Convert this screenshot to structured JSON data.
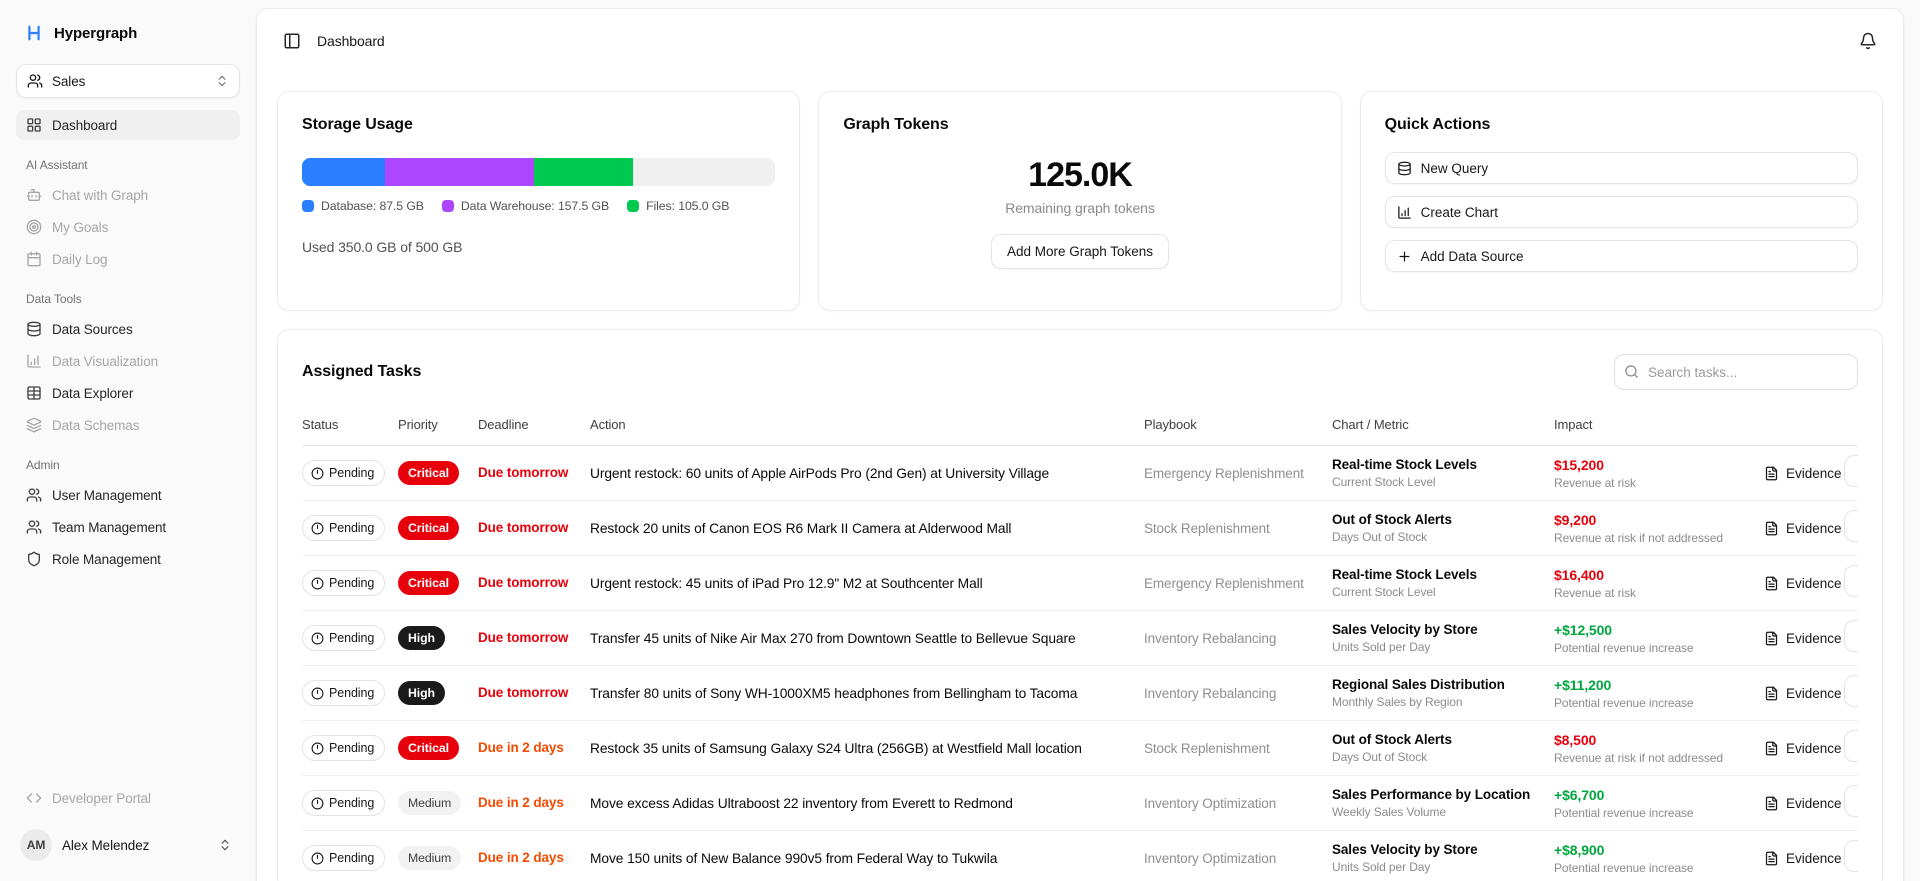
{
  "app": {
    "name": "Hypergraph"
  },
  "topbar": {
    "title": "Dashboard"
  },
  "sidebar": {
    "workspace_label": "Sales",
    "primary": {
      "dashboard_label": "Dashboard"
    },
    "sections": [
      {
        "label": "AI Assistant",
        "items": [
          {
            "label": "Chat with Graph",
            "icon": "bot-icon",
            "muted": true
          },
          {
            "label": "My Goals",
            "icon": "target-icon",
            "muted": true
          },
          {
            "label": "Daily Log",
            "icon": "calendar-icon",
            "muted": true
          }
        ]
      },
      {
        "label": "Data Tools",
        "items": [
          {
            "label": "Data Sources",
            "icon": "database-icon",
            "muted": false
          },
          {
            "label": "Data Visualization",
            "icon": "bar-chart-icon",
            "muted": true
          },
          {
            "label": "Data Explorer",
            "icon": "table-icon",
            "muted": false
          },
          {
            "label": "Data Schemas",
            "icon": "layers-icon",
            "muted": true
          }
        ]
      },
      {
        "label": "Admin",
        "items": [
          {
            "label": "User Management",
            "icon": "users-icon",
            "muted": false
          },
          {
            "label": "Team Management",
            "icon": "users-icon",
            "muted": false
          },
          {
            "label": "Role Management",
            "icon": "shield-icon",
            "muted": false
          }
        ]
      }
    ],
    "footer": {
      "developer_portal_label": "Developer Portal",
      "user": {
        "initials": "AM",
        "name": "Alex Melendez"
      }
    }
  },
  "cards": {
    "storage": {
      "title": "Storage Usage",
      "used_label": "Used 350.0 GB of 500 GB",
      "used_gb": 350.0,
      "capacity_gb": 500,
      "segments": [
        {
          "name": "Database",
          "label": "Database: 87.5 GB",
          "gb": 87.5,
          "pct": 17.5,
          "color": "#2b7fff"
        },
        {
          "name": "Data Warehouse",
          "label": "Data Warehouse: 157.5 GB",
          "gb": 157.5,
          "pct": 31.5,
          "color": "#ad46ff"
        },
        {
          "name": "Files",
          "label": "Files: 105.0 GB",
          "gb": 105.0,
          "pct": 21,
          "color": "#00c950"
        }
      ]
    },
    "tokens": {
      "title": "Graph Tokens",
      "value": "125.0K",
      "subtitle": "Remaining graph tokens",
      "button_label": "Add More Graph Tokens"
    },
    "quick_actions": {
      "title": "Quick Actions",
      "actions": [
        {
          "label": "New Query",
          "icon": "database-icon"
        },
        {
          "label": "Create Chart",
          "icon": "bar-chart-icon"
        },
        {
          "label": "Add Data Source",
          "icon": "plus-icon"
        }
      ]
    }
  },
  "tasks": {
    "title": "Assigned Tasks",
    "search_placeholder": "Search tasks...",
    "columns": [
      "Status",
      "Priority",
      "Deadline",
      "Action",
      "Playbook",
      "Chart / Metric",
      "Impact"
    ],
    "evidence_label": "Evidence",
    "rows": [
      {
        "status": "Pending",
        "priority": "Critical",
        "priority_variant": "critical",
        "deadline": "Due tomorrow",
        "deadline_variant": "urgent",
        "action": "Urgent restock: 60 units of Apple AirPods Pro (2nd Gen) at University Village",
        "playbook": "Emergency Replenishment",
        "metric": "Real-time Stock Levels",
        "metric_sub": "Current Stock Level",
        "impact": "$15,200",
        "impact_variant": "risk",
        "impact_sub": "Revenue at risk"
      },
      {
        "status": "Pending",
        "priority": "Critical",
        "priority_variant": "critical",
        "deadline": "Due tomorrow",
        "deadline_variant": "urgent",
        "action": "Restock 20 units of Canon EOS R6 Mark II Camera at Alderwood Mall",
        "playbook": "Stock Replenishment",
        "metric": "Out of Stock Alerts",
        "metric_sub": "Days Out of Stock",
        "impact": "$9,200",
        "impact_variant": "risk",
        "impact_sub": "Revenue at risk if not addressed"
      },
      {
        "status": "Pending",
        "priority": "Critical",
        "priority_variant": "critical",
        "deadline": "Due tomorrow",
        "deadline_variant": "urgent",
        "action": "Urgent restock: 45 units of iPad Pro 12.9\" M2 at Southcenter Mall",
        "playbook": "Emergency Replenishment",
        "metric": "Real-time Stock Levels",
        "metric_sub": "Current Stock Level",
        "impact": "$16,400",
        "impact_variant": "risk",
        "impact_sub": "Revenue at risk"
      },
      {
        "status": "Pending",
        "priority": "High",
        "priority_variant": "high",
        "deadline": "Due tomorrow",
        "deadline_variant": "urgent",
        "action": "Transfer 45 units of Nike Air Max 270 from Downtown Seattle to Bellevue Square",
        "playbook": "Inventory Rebalancing",
        "metric": "Sales Velocity by Store",
        "metric_sub": "Units Sold per Day",
        "impact": "+$12,500",
        "impact_variant": "gain",
        "impact_sub": "Potential revenue increase"
      },
      {
        "status": "Pending",
        "priority": "High",
        "priority_variant": "high",
        "deadline": "Due tomorrow",
        "deadline_variant": "urgent",
        "action": "Transfer 80 units of Sony WH-1000XM5 headphones from Bellingham to Tacoma",
        "playbook": "Inventory Rebalancing",
        "metric": "Regional Sales Distribution",
        "metric_sub": "Monthly Sales by Region",
        "impact": "+$11,200",
        "impact_variant": "gain",
        "impact_sub": "Potential revenue increase"
      },
      {
        "status": "Pending",
        "priority": "Critical",
        "priority_variant": "critical",
        "deadline": "Due in 2 days",
        "deadline_variant": "soon",
        "action": "Restock 35 units of Samsung Galaxy S24 Ultra (256GB) at Westfield Mall location",
        "playbook": "Stock Replenishment",
        "metric": "Out of Stock Alerts",
        "metric_sub": "Days Out of Stock",
        "impact": "$8,500",
        "impact_variant": "risk",
        "impact_sub": "Revenue at risk if not addressed"
      },
      {
        "status": "Pending",
        "priority": "Medium",
        "priority_variant": "medium",
        "deadline": "Due in 2 days",
        "deadline_variant": "soon",
        "action": "Move excess Adidas Ultraboost 22 inventory from Everett to Redmond",
        "playbook": "Inventory Optimization",
        "metric": "Sales Performance by Location",
        "metric_sub": "Weekly Sales Volume",
        "impact": "+$6,700",
        "impact_variant": "gain",
        "impact_sub": "Potential revenue increase"
      },
      {
        "status": "Pending",
        "priority": "Medium",
        "priority_variant": "medium",
        "deadline": "Due in 2 days",
        "deadline_variant": "soon",
        "action": "Move 150 units of New Balance 990v5 from Federal Way to Tukwila",
        "playbook": "Inventory Optimization",
        "metric": "Sales Velocity by Store",
        "metric_sub": "Units Sold per Day",
        "impact": "+$8,900",
        "impact_variant": "gain",
        "impact_sub": "Potential revenue increase"
      }
    ]
  },
  "colors": {
    "accent_blue": "#2b7fff",
    "purple": "#ad46ff",
    "green_bar": "#00c950",
    "risk_red": "#e7000b",
    "warn_orange": "#f54a00",
    "gain_green": "#00a63e",
    "high_black": "#1a1a1a"
  }
}
